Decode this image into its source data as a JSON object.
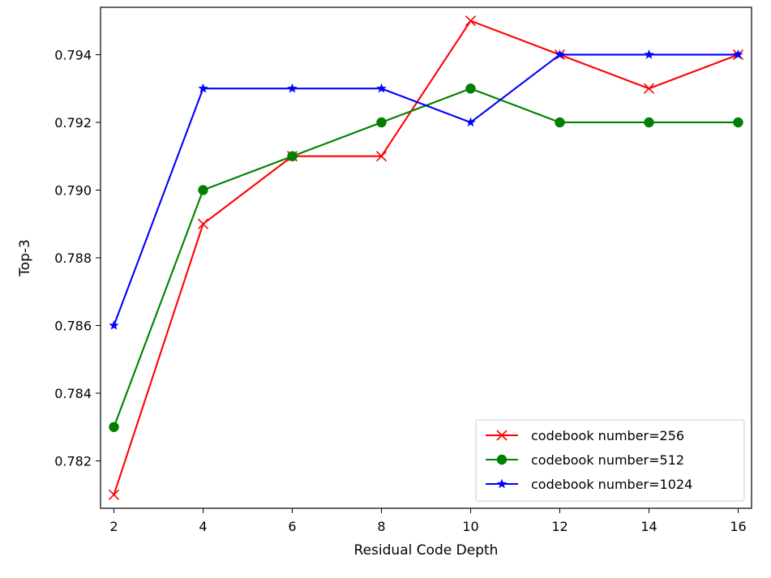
{
  "chart_data": {
    "type": "line",
    "title": "",
    "xlabel": "Residual Code Depth",
    "ylabel": "Top-3",
    "x": [
      2,
      4,
      6,
      8,
      10,
      12,
      14,
      16
    ],
    "xlim": [
      1.7,
      16.3
    ],
    "ylim": [
      0.7806,
      0.7954
    ],
    "xticks": [
      2,
      4,
      6,
      8,
      10,
      12,
      14,
      16
    ],
    "xtick_labels": [
      "2",
      "4",
      "6",
      "8",
      "10",
      "12",
      "14",
      "16"
    ],
    "yticks": [
      0.782,
      0.784,
      0.786,
      0.788,
      0.79,
      0.792,
      0.794
    ],
    "ytick_labels": [
      "0.782",
      "0.784",
      "0.786",
      "0.788",
      "0.790",
      "0.792",
      "0.794"
    ],
    "grid": false,
    "legend_position": "lower-right",
    "series": [
      {
        "name": "codebook number=256",
        "color": "#ff0000",
        "marker": "x",
        "values": [
          0.781,
          0.789,
          0.791,
          0.791,
          0.795,
          0.794,
          0.793,
          0.794
        ]
      },
      {
        "name": "codebook number=512",
        "color": "#008000",
        "marker": "circle",
        "values": [
          0.783,
          0.79,
          0.791,
          0.792,
          0.793,
          0.792,
          0.792,
          0.792
        ]
      },
      {
        "name": "codebook number=1024",
        "color": "#0000ff",
        "marker": "star",
        "values": [
          0.786,
          0.793,
          0.793,
          0.793,
          0.792,
          0.794,
          0.794,
          0.794
        ]
      }
    ]
  }
}
